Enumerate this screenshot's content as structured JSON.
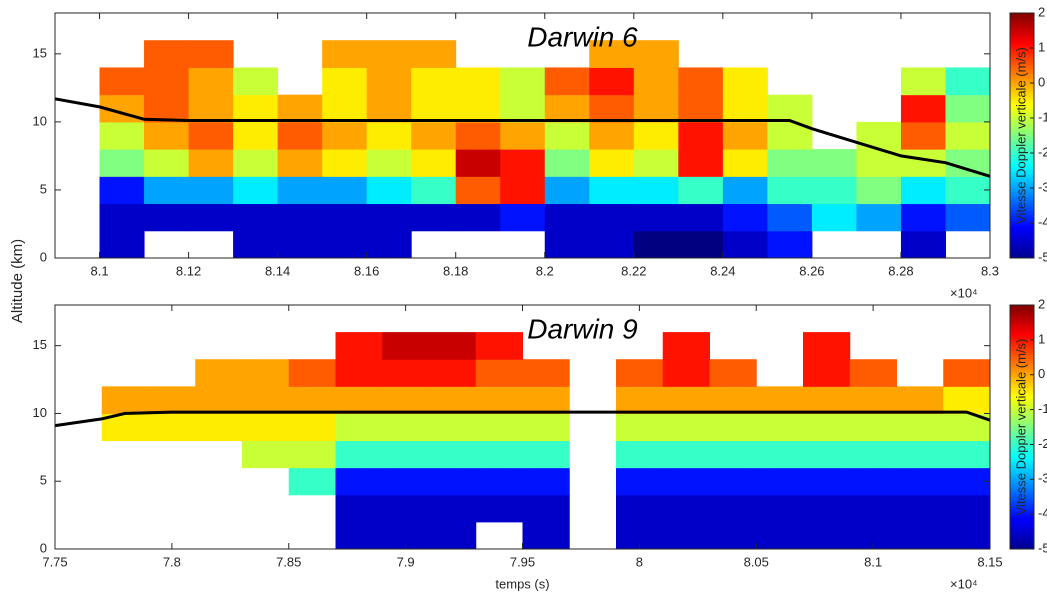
{
  "chart_data": [
    {
      "type": "heatmap",
      "title": "Darwin 6",
      "y_label": "Altitude (km)",
      "x_multiplier": "×10⁴",
      "xlim": [
        8.09,
        8.3
      ],
      "xticks": [
        8.1,
        8.12,
        8.14,
        8.16,
        8.18,
        8.2,
        8.22,
        8.24,
        8.26,
        8.28,
        8.3
      ],
      "ylim": [
        0,
        18
      ],
      "yticks": [
        0,
        5,
        10,
        15
      ],
      "x_bins": [
        8.1,
        8.11,
        8.12,
        8.13,
        8.14,
        8.15,
        8.16,
        8.17,
        8.18,
        8.19,
        8.2,
        8.21,
        8.22,
        8.23,
        8.24,
        8.25,
        8.26,
        8.27,
        8.28,
        8.29,
        8.3
      ],
      "y_bins": [
        0,
        2,
        4,
        6,
        8,
        10,
        12,
        14,
        16
      ],
      "z": [
        [
          -4.5,
          null,
          null,
          -4.5,
          -4.5,
          -4.5,
          -4.5,
          null,
          null,
          null,
          -4.5,
          -4.5,
          -5,
          -5,
          -4.5,
          -4,
          null,
          null,
          -4.5,
          null
        ],
        [
          -4.5,
          -4.5,
          -4.5,
          -4.5,
          -4.5,
          -4.5,
          -4.5,
          -4.5,
          -4.5,
          -4,
          -4.5,
          -4.5,
          -4.5,
          -4.5,
          -4,
          -3.5,
          -2.5,
          -3,
          -4,
          -3.5
        ],
        [
          -4,
          -3,
          -3,
          -2.5,
          -3,
          -3,
          -2.5,
          -2,
          0.5,
          1,
          -3,
          -2.5,
          -2.5,
          -2,
          -3,
          -2,
          -2,
          -1.5,
          -2.5,
          -2
        ],
        [
          -1.5,
          -1,
          0,
          -1,
          0,
          -0.5,
          -1,
          -0.5,
          1.5,
          1,
          -1.5,
          -0.5,
          -1,
          1,
          -0.5,
          -1.5,
          -1.5,
          -1,
          -1,
          -1.5
        ],
        [
          -1,
          0,
          0.5,
          -0.5,
          0.5,
          0,
          -0.5,
          0,
          0.5,
          0,
          -1,
          0,
          -0.5,
          1,
          0,
          -1,
          null,
          -1,
          0.5,
          -1
        ],
        [
          0,
          0.5,
          0,
          -0.5,
          0,
          -0.5,
          0,
          -0.5,
          -0.5,
          -1,
          0,
          0.5,
          0,
          0.5,
          -0.5,
          -1,
          null,
          null,
          1,
          -1.5
        ],
        [
          0.5,
          0.5,
          0,
          -1,
          null,
          -0.5,
          0,
          -0.5,
          -0.5,
          -1,
          0.5,
          1,
          0,
          0.5,
          -0.5,
          null,
          null,
          null,
          -1,
          -2
        ],
        [
          null,
          0.5,
          0.5,
          null,
          null,
          0,
          0,
          0,
          null,
          null,
          null,
          0,
          0,
          null,
          null,
          null,
          null,
          null,
          null,
          null
        ]
      ],
      "track": {
        "color": "#000000",
        "x": [
          8.09,
          8.1,
          8.11,
          8.12,
          8.14,
          8.16,
          8.18,
          8.2,
          8.22,
          8.24,
          8.255,
          8.26,
          8.27,
          8.28,
          8.29,
          8.3
        ],
        "y": [
          11.7,
          11.1,
          10.2,
          10.1,
          10.1,
          10.1,
          10.1,
          10.1,
          10.1,
          10.1,
          10.1,
          9.5,
          8.5,
          7.5,
          7,
          6
        ]
      },
      "colorbar": {
        "label": "Vitesse Doppler verticale (m/s)",
        "clim": [
          -5,
          2
        ],
        "ticks": [
          2,
          1,
          0,
          -1,
          -2,
          -3,
          -4,
          -5
        ]
      }
    },
    {
      "type": "heatmap",
      "title": "Darwin 9",
      "x_label": "temps (s)",
      "x_multiplier": "×10⁴",
      "xlim": [
        7.75,
        8.15
      ],
      "xticks": [
        7.75,
        7.8,
        7.85,
        7.9,
        7.95,
        8,
        8.05,
        8.1,
        8.15
      ],
      "ylim": [
        0,
        18
      ],
      "yticks": [
        0,
        5,
        10,
        15
      ],
      "x_bins": [
        7.75,
        7.77,
        7.79,
        7.81,
        7.83,
        7.85,
        7.87,
        7.89,
        7.91,
        7.93,
        7.95,
        7.97,
        7.99,
        8.01,
        8.03,
        8.05,
        8.07,
        8.09,
        8.11,
        8.13,
        8.15
      ],
      "y_bins": [
        0,
        2,
        4,
        6,
        8,
        10,
        12,
        14,
        16
      ],
      "z": [
        [
          null,
          null,
          null,
          null,
          null,
          null,
          -4.5,
          -4.5,
          -4.5,
          null,
          -4.5,
          null,
          -4.5,
          -4.5,
          -4.5,
          -4.5,
          -4.5,
          -4.5,
          -4.5,
          -4.5
        ],
        [
          null,
          null,
          null,
          null,
          null,
          null,
          -4.5,
          -4.5,
          -4.5,
          -4.5,
          -4.5,
          null,
          -4.5,
          -4.5,
          -4.5,
          -4.5,
          -4.5,
          -4.5,
          -4.5,
          -4.5
        ],
        [
          null,
          null,
          null,
          null,
          null,
          -2,
          -4,
          -4,
          -4,
          -4,
          -4,
          null,
          -4,
          -4,
          -4,
          -4,
          -4,
          -4,
          -4,
          -4
        ],
        [
          null,
          null,
          null,
          null,
          -1,
          -1,
          -2,
          -2,
          -2,
          -2,
          -2,
          null,
          -2,
          -2,
          -2,
          -2,
          -2,
          -2,
          -2,
          -2
        ],
        [
          null,
          -0.5,
          -0.5,
          -0.5,
          -0.5,
          -0.5,
          -1,
          -1,
          -1,
          -1,
          -1,
          null,
          -1,
          -1,
          -1,
          -1,
          -1,
          -1,
          -1,
          -1
        ],
        [
          null,
          0,
          0,
          0,
          0,
          0,
          0,
          0,
          0,
          0,
          0,
          null,
          0,
          0,
          0,
          0,
          0,
          0,
          0,
          -0.5
        ],
        [
          null,
          null,
          null,
          0,
          0,
          0.5,
          1,
          1,
          1,
          0.5,
          0.5,
          null,
          0.5,
          1,
          0.5,
          null,
          1,
          0.5,
          null,
          0.5
        ],
        [
          null,
          null,
          null,
          null,
          null,
          null,
          1,
          1.5,
          1.5,
          1,
          null,
          null,
          null,
          1,
          null,
          null,
          1,
          null,
          null,
          null
        ]
      ],
      "track": {
        "color": "#000000",
        "x": [
          7.75,
          7.77,
          7.78,
          7.8,
          7.85,
          7.9,
          7.95,
          8,
          8.05,
          8.1,
          8.14,
          8.15
        ],
        "y": [
          9.1,
          9.6,
          10,
          10.1,
          10.1,
          10.1,
          10.1,
          10.1,
          10.1,
          10.1,
          10.1,
          9.5
        ]
      },
      "colorbar": {
        "label": "Vitesse Doppler verticale (m/s)",
        "clim": [
          -5,
          2
        ],
        "ticks": [
          2,
          1,
          0,
          -1,
          -2,
          -3,
          -4,
          -5
        ]
      }
    }
  ]
}
